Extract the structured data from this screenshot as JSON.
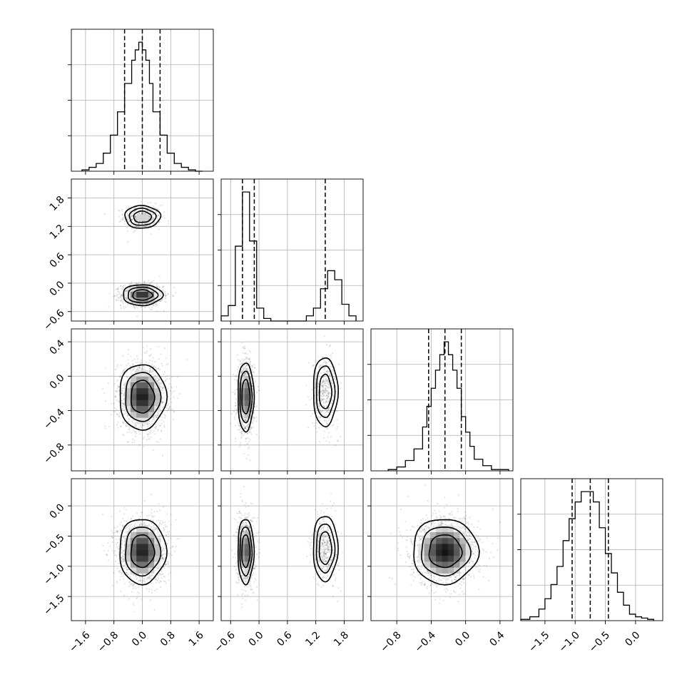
{
  "chart_data": {
    "type": "corner",
    "title": "",
    "parameters": [
      {
        "range": [
          -2.0,
          2.0
        ],
        "ticks": [
          -1.6,
          -0.8,
          0.0,
          0.8,
          1.6
        ],
        "tick_labels": [
          "−1.6",
          "−0.8",
          "0.0",
          "0.8",
          "1.6"
        ],
        "quantiles": [
          -0.5,
          0.0,
          0.5
        ],
        "histogram": {
          "bin_edges": [
            -1.7,
            -1.5,
            -1.3,
            -1.1,
            -0.9,
            -0.7,
            -0.5,
            -0.3,
            -0.2,
            -0.1,
            0.0,
            0.1,
            0.2,
            0.3,
            0.5,
            0.7,
            0.9,
            1.1,
            1.3,
            1.5,
            1.7
          ],
          "counts": [
            0.01,
            0.03,
            0.06,
            0.14,
            0.28,
            0.46,
            0.68,
            0.86,
            0.94,
            1.0,
            0.94,
            0.86,
            0.68,
            0.46,
            0.28,
            0.14,
            0.06,
            0.03,
            0.01,
            0.0
          ]
        }
      },
      {
        "range": [
          -0.8,
          2.2
        ],
        "ticks": [
          -0.6,
          0.0,
          0.6,
          1.2,
          1.8
        ],
        "tick_labels": [
          "−0.6",
          "0.0",
          "0.6",
          "1.2",
          "1.8"
        ],
        "quantiles": [
          -0.35,
          -0.1,
          1.4
        ],
        "histogram": {
          "bin_edges": [
            -0.8,
            -0.65,
            -0.5,
            -0.35,
            -0.2,
            -0.05,
            0.1,
            0.25,
            0.4,
            0.55,
            0.7,
            0.85,
            1.0,
            1.15,
            1.3,
            1.45,
            1.6,
            1.75,
            1.9,
            2.05
          ],
          "counts": [
            0.04,
            0.12,
            0.58,
            1.0,
            0.62,
            0.1,
            0.02,
            0.0,
            0.0,
            0.0,
            0.0,
            0.0,
            0.04,
            0.1,
            0.25,
            0.39,
            0.32,
            0.13,
            0.04
          ]
        }
      },
      {
        "range": [
          -1.1,
          0.55
        ],
        "ticks": [
          -0.8,
          -0.4,
          0.0,
          0.4
        ],
        "tick_labels": [
          "−0.8",
          "−0.4",
          "0.0",
          "0.4"
        ],
        "quantiles": [
          -0.43,
          -0.24,
          -0.05
        ],
        "histogram": {
          "bin_edges": [
            -0.9,
            -0.8,
            -0.7,
            -0.6,
            -0.5,
            -0.45,
            -0.4,
            -0.35,
            -0.3,
            -0.25,
            -0.2,
            -0.15,
            -0.1,
            -0.05,
            0.0,
            0.05,
            0.1,
            0.2,
            0.3,
            0.4,
            0.5
          ],
          "counts": [
            0.01,
            0.03,
            0.08,
            0.17,
            0.34,
            0.5,
            0.64,
            0.78,
            0.9,
            1.0,
            0.9,
            0.78,
            0.64,
            0.42,
            0.3,
            0.19,
            0.09,
            0.04,
            0.01,
            0.01
          ]
        }
      },
      {
        "range": [
          -1.9,
          0.45
        ],
        "ticks": [
          -1.5,
          -1.0,
          -0.5,
          0.0
        ],
        "tick_labels": [
          "−1.5",
          "−1.0",
          "−0.5",
          "0.0"
        ],
        "quantiles": [
          -1.05,
          -0.75,
          -0.45
        ],
        "histogram": {
          "bin_edges": [
            -1.9,
            -1.75,
            -1.6,
            -1.5,
            -1.4,
            -1.3,
            -1.2,
            -1.1,
            -1.0,
            -0.9,
            -0.8,
            -0.7,
            -0.6,
            -0.5,
            -0.4,
            -0.3,
            -0.2,
            -0.1,
            0.0,
            0.1,
            0.2,
            0.3
          ],
          "counts": [
            0.01,
            0.03,
            0.09,
            0.17,
            0.28,
            0.42,
            0.62,
            0.79,
            0.92,
            1.0,
            1.0,
            0.92,
            0.72,
            0.52,
            0.37,
            0.22,
            0.12,
            0.05,
            0.03,
            0.02,
            0.01
          ]
        }
      }
    ],
    "pair_densities": [
      {
        "row": 1,
        "col": 0,
        "modes": [
          {
            "mean": [
              0.0,
              1.4
            ],
            "sd": [
              0.25,
              0.12
            ],
            "weight": 0.3
          },
          {
            "mean": [
              0.0,
              -0.25
            ],
            "sd": [
              0.28,
              0.11
            ],
            "weight": 0.7
          }
        ]
      },
      {
        "row": 2,
        "col": 0,
        "modes": [
          {
            "mean": [
              0.0,
              -0.24
            ],
            "sd": [
              0.33,
              0.19
            ],
            "weight": 1.0
          }
        ]
      },
      {
        "row": 2,
        "col": 1,
        "modes": [
          {
            "mean": [
              -0.28,
              -0.24
            ],
            "sd": [
              0.085,
              0.2
            ],
            "weight": 0.7
          },
          {
            "mean": [
              1.4,
              -0.18
            ],
            "sd": [
              0.13,
              0.2
            ],
            "weight": 0.3
          }
        ]
      },
      {
        "row": 3,
        "col": 0,
        "modes": [
          {
            "mean": [
              0.0,
              -0.75
            ],
            "sd": [
              0.33,
              0.27
            ],
            "weight": 1.0
          }
        ]
      },
      {
        "row": 3,
        "col": 1,
        "modes": [
          {
            "mean": [
              -0.28,
              -0.75
            ],
            "sd": [
              0.085,
              0.27
            ],
            "weight": 0.7
          },
          {
            "mean": [
              1.4,
              -0.7
            ],
            "sd": [
              0.13,
              0.27
            ],
            "weight": 0.3
          }
        ]
      },
      {
        "row": 3,
        "col": 2,
        "modes": [
          {
            "mean": [
              -0.24,
              -0.75
            ],
            "sd": [
              0.19,
              0.27
            ],
            "weight": 1.0
          }
        ]
      }
    ],
    "grid": true,
    "contour_levels": 3,
    "histogram_style": "step",
    "quantile_line_style": "dashed"
  }
}
